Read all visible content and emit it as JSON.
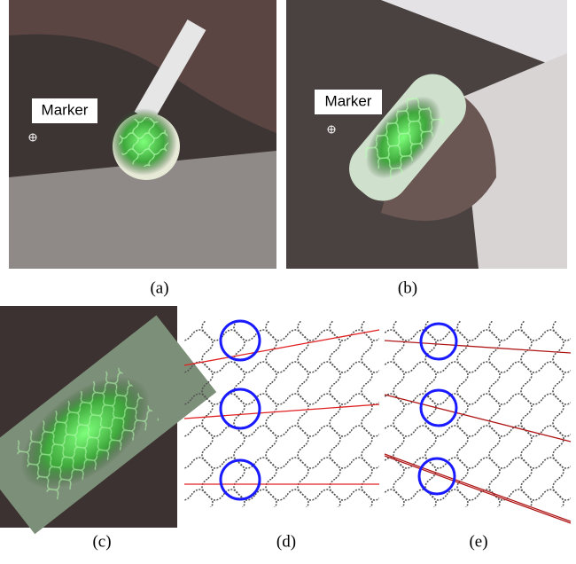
{
  "panels": [
    {
      "label": "(a)",
      "marker": "Marker"
    },
    {
      "label": "(b)",
      "marker": "Marker"
    },
    {
      "label": "(c)"
    },
    {
      "label": "(d)"
    },
    {
      "label": "(e)"
    }
  ]
}
